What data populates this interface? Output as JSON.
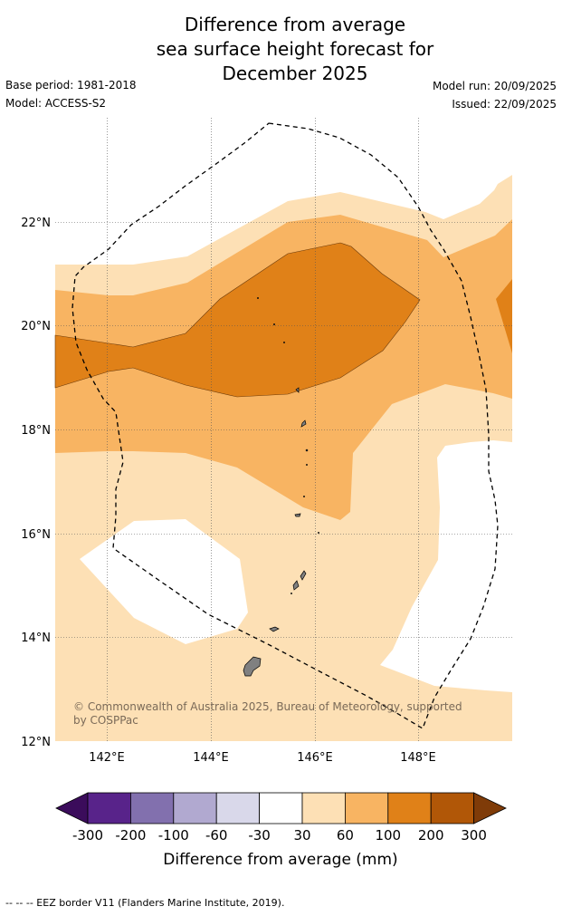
{
  "header": {
    "title_lines": [
      "Difference from average",
      "sea surface height forecast for",
      "December 2025"
    ],
    "base_period": "Base period: 1981-2018",
    "model": "Model: ACCESS-S2",
    "model_run": "Model run: 20/09/2025",
    "issued": "Issued: 22/09/2025"
  },
  "map": {
    "lat_labels": [
      "22°N",
      "20°N",
      "18°N",
      "16°N",
      "14°N",
      "12°N"
    ],
    "lon_labels": [
      "142°E",
      "144°E",
      "146°E",
      "148°E"
    ],
    "copyright": [
      "© Commonwealth of Australia 2025, Bureau of Meteorology, supported",
      "by COSPPac"
    ]
  },
  "colorbar": {
    "tick_labels": [
      "-300",
      "-200",
      "-100",
      "-60",
      "-30",
      "30",
      "60",
      "100",
      "200",
      "300"
    ],
    "colors": [
      "#3b0c5b",
      "#58238a",
      "#8270ae",
      "#b1a9d0",
      "#d9d8ea",
      "#ffffff",
      "#fde0b5",
      "#f8b462",
      "#e08118",
      "#b15707",
      "#7f3b08"
    ],
    "label": "Difference from average (mm)"
  },
  "footer": {
    "legend_text": "--  --  -- EEZ border V11 (Flanders Marine Institute, 2019)."
  },
  "colors": {
    "c30": "#fde0b5",
    "c60": "#f8b462",
    "c100": "#e08118",
    "land": "#808080"
  }
}
